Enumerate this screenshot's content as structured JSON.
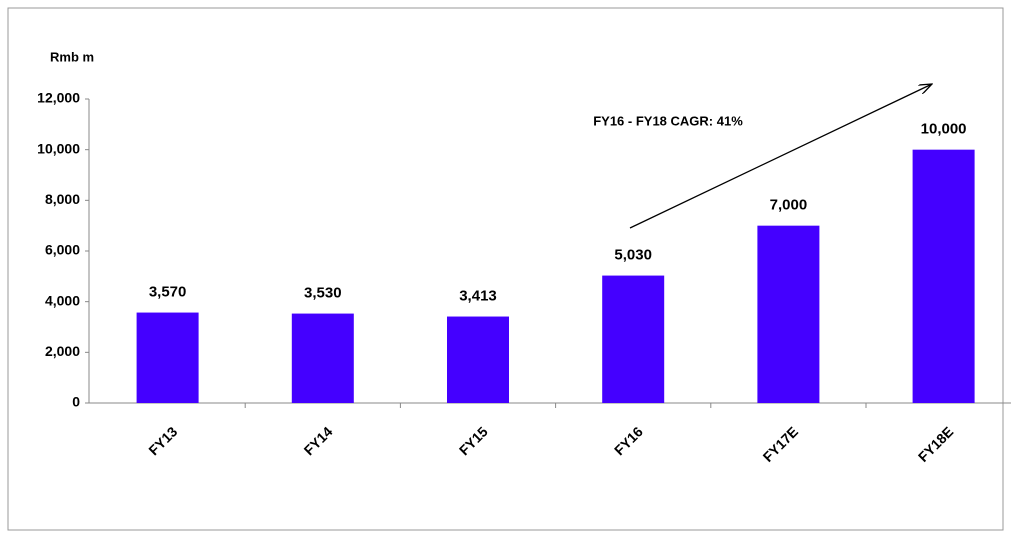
{
  "chart_data": {
    "type": "bar",
    "y_label": "Rmb m",
    "annotation": "FY16 - FY18 CAGR: 41%",
    "categories": [
      "FY13",
      "FY14",
      "FY15",
      "FY16",
      "FY17E",
      "FY18E"
    ],
    "values": [
      3570,
      3530,
      3413,
      5030,
      7000,
      10000
    ],
    "value_labels": [
      "3,570",
      "3,530",
      "3,413",
      "5,030",
      "7,000",
      "10,000"
    ],
    "color": "#4400ff",
    "ylim": [
      0,
      12000
    ],
    "yticks": [
      0,
      {
        "value": 2000,
        "label": "2,000"
      },
      {
        "value": 4000,
        "label": "4,000"
      },
      {
        "value": 6000,
        "label": "6,000"
      },
      {
        "value": 8000,
        "label": "8,000"
      },
      {
        "value": 10000,
        "label": "10,000"
      },
      {
        "value": 12000,
        "label": "12,000"
      }
    ],
    "grid": false
  }
}
